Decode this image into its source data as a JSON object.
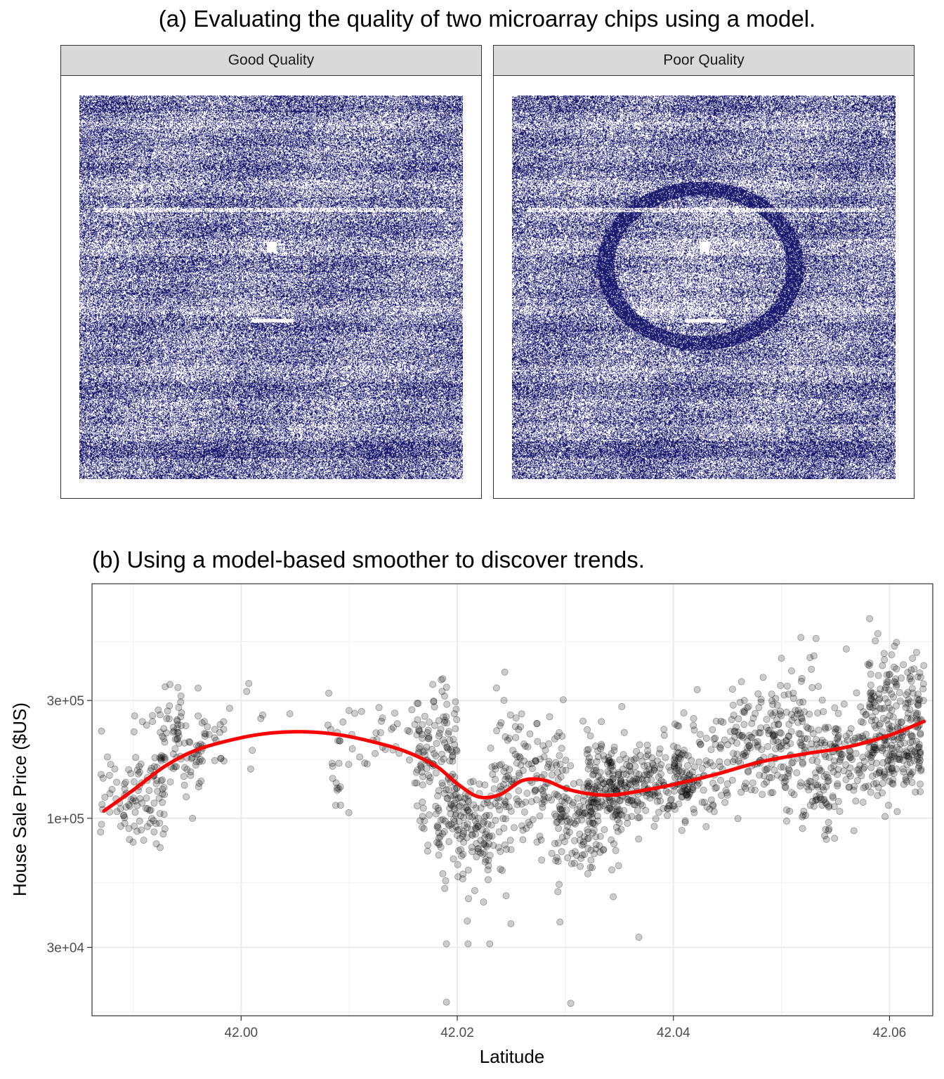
{
  "chart_data": [
    {
      "type": "heatmap",
      "title": "(a) Evaluating the quality of two microarray chips using a model.",
      "facets": [
        "Good Quality",
        "Poor Quality"
      ],
      "colors": {
        "fill": "#1a1a6e",
        "background": "#ffffff"
      },
      "facet_features": {
        "Good Quality": "uniform random speckle, no artifact",
        "Poor Quality": "ring-shaped artifact in center of chip"
      }
    },
    {
      "type": "scatter",
      "title": "(b) Using a model-based smoother to discover trends.",
      "xlabel": "Latitude",
      "ylabel": "House Sale Price ($US)",
      "xlim": [
        41.9862,
        42.064
      ],
      "ylim_log10": [
        4.2,
        5.95
      ],
      "x_ticks": [
        42.0,
        42.02,
        42.04,
        42.06
      ],
      "x_tick_labels": [
        "42.00",
        "42.02",
        "42.04",
        "42.06"
      ],
      "y_ticks": [
        30000,
        100000,
        300000
      ],
      "y_tick_labels": [
        "3e+04",
        "1e+05",
        "3e+05"
      ],
      "y_scale": "log10",
      "point_color": "#000000",
      "point_alpha": 0.2,
      "smoother_color": "#ff0000",
      "smoother": {
        "x": [
          41.9873,
          41.99,
          41.993,
          41.996,
          42.0,
          42.003,
          42.006,
          42.009,
          42.012,
          42.015,
          42.018,
          42.02,
          42.022,
          42.024,
          42.026,
          42.028,
          42.03,
          42.032,
          42.034,
          42.036,
          42.04,
          42.044,
          42.048,
          42.052,
          42.056,
          42.06,
          42.0632
        ],
        "y": [
          107000,
          130000,
          163000,
          190000,
          212000,
          222000,
          224000,
          218000,
          205000,
          188000,
          163000,
          138000,
          122000,
          125000,
          142000,
          143000,
          132000,
          126000,
          124000,
          127000,
          137000,
          151000,
          169000,
          182000,
          194000,
          217000,
          247000
        ]
      },
      "scatter_clusters": [
        {
          "x_range": [
            41.987,
            41.9885
          ],
          "center": 135000,
          "spread": 0.08,
          "n": 16
        },
        {
          "x_range": [
            41.9885,
            41.99
          ],
          "center": 120000,
          "spread": 0.1,
          "n": 22
        },
        {
          "x_range": [
            41.99,
            41.9915
          ],
          "center": 135000,
          "spread": 0.12,
          "n": 32
        },
        {
          "x_range": [
            41.9915,
            41.993
          ],
          "center": 128000,
          "spread": 0.14,
          "n": 40
        },
        {
          "x_range": [
            41.9925,
            41.9945
          ],
          "center": 245000,
          "spread": 0.08,
          "n": 32
        },
        {
          "x_range": [
            41.9935,
            41.9965
          ],
          "center": 185000,
          "spread": 0.09,
          "n": 45
        },
        {
          "x_range": [
            41.996,
            41.9985
          ],
          "center": 205000,
          "spread": 0.06,
          "n": 24
        },
        {
          "x_range": [
            41.9985,
            42.002
          ],
          "center": 240000,
          "spread": 0.1,
          "n": 6
        },
        {
          "x_range": [
            42.008,
            42.01
          ],
          "center": 175000,
          "spread": 0.14,
          "n": 22
        },
        {
          "x_range": [
            42.01,
            42.016
          ],
          "center": 210000,
          "spread": 0.07,
          "n": 28
        },
        {
          "x_range": [
            42.016,
            42.02
          ],
          "center": 180000,
          "spread": 0.16,
          "n": 130
        },
        {
          "x_range": [
            42.018,
            42.023
          ],
          "center": 100000,
          "spread": 0.1,
          "n": 110
        },
        {
          "x_range": [
            42.02,
            42.025
          ],
          "center": 82000,
          "spread": 0.13,
          "n": 60
        },
        {
          "x_range": [
            42.023,
            42.026
          ],
          "center": 150000,
          "spread": 0.17,
          "n": 70
        },
        {
          "x_range": [
            42.026,
            42.03
          ],
          "center": 128000,
          "spread": 0.16,
          "n": 90
        },
        {
          "x_range": [
            42.029,
            42.033
          ],
          "center": 110000,
          "spread": 0.11,
          "n": 90
        },
        {
          "x_range": [
            42.03,
            42.035
          ],
          "center": 82000,
          "spread": 0.1,
          "n": 40
        },
        {
          "x_range": [
            42.032,
            42.037
          ],
          "center": 138000,
          "spread": 0.09,
          "n": 200
        },
        {
          "x_range": [
            42.037,
            42.042
          ],
          "center": 138000,
          "spread": 0.08,
          "n": 130
        },
        {
          "x_range": [
            42.04,
            42.045
          ],
          "center": 165000,
          "spread": 0.11,
          "n": 90
        },
        {
          "x_range": [
            42.045,
            42.049
          ],
          "center": 190000,
          "spread": 0.12,
          "n": 100
        },
        {
          "x_range": [
            42.049,
            42.053
          ],
          "center": 215000,
          "spread": 0.15,
          "n": 120
        },
        {
          "x_range": [
            42.05,
            42.055
          ],
          "center": 115000,
          "spread": 0.08,
          "n": 30
        },
        {
          "x_range": [
            42.053,
            42.057
          ],
          "center": 175000,
          "spread": 0.13,
          "n": 110
        },
        {
          "x_range": [
            42.057,
            42.063
          ],
          "center": 190000,
          "spread": 0.1,
          "n": 220
        },
        {
          "x_range": [
            42.058,
            42.0632
          ],
          "center": 330000,
          "spread": 0.11,
          "n": 90
        }
      ],
      "outliers": [
        [
          42.019,
          18000
        ],
        [
          42.0305,
          17800
        ],
        [
          41.987,
          88000
        ],
        [
          42.019,
          31000
        ],
        [
          42.021,
          31000
        ],
        [
          42.023,
          31000
        ],
        [
          42.0295,
          38000
        ],
        [
          42.0368,
          33000
        ],
        [
          42.0518,
          540000
        ],
        [
          42.0532,
          535000
        ],
        [
          42.05,
          445000
        ],
        [
          42.053,
          455000
        ],
        [
          42.056,
          485000
        ],
        [
          42.0595,
          465000
        ],
        [
          42.0625,
          470000
        ],
        [
          42.058,
          420000
        ],
        [
          41.9955,
          100000
        ],
        [
          42.002,
          262000
        ],
        [
          42.0045,
          265000
        ],
        [
          42.054,
          85000
        ],
        [
          41.99,
          80000
        ]
      ]
    }
  ]
}
